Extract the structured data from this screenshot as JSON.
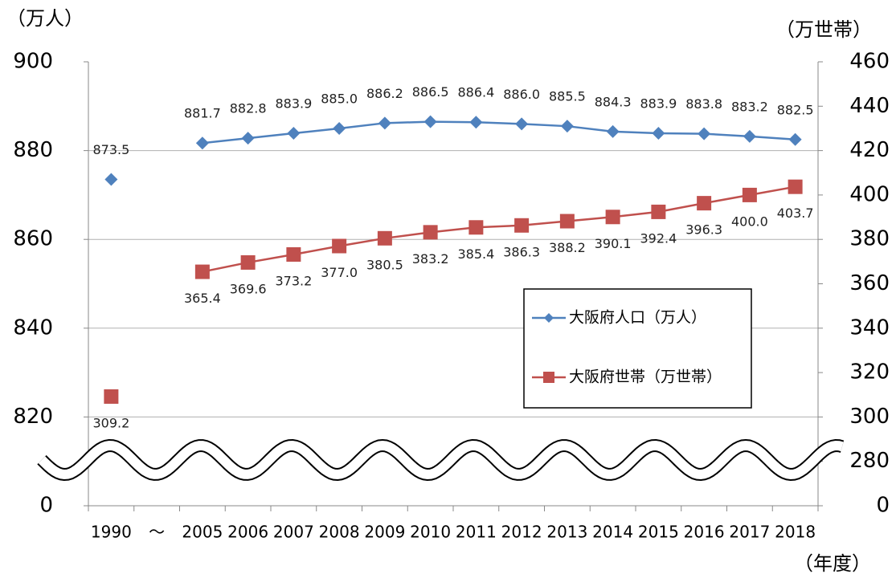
{
  "chart_data": {
    "type": "line",
    "y_axis_title": "（万人）",
    "y2_axis_title": "（万世帯）",
    "x_axis_title": "（年度）",
    "categories": [
      "1990",
      "～",
      "2005",
      "2006",
      "2007",
      "2008",
      "2009",
      "2010",
      "2011",
      "2012",
      "2013",
      "2014",
      "2015",
      "2016",
      "2017",
      "2018"
    ],
    "series": [
      {
        "name": "大阪府人口（万人）",
        "color": "#4f81bd",
        "marker": "diamond",
        "values": [
          873.5,
          null,
          881.7,
          882.8,
          883.9,
          885.0,
          886.2,
          886.5,
          886.4,
          886.0,
          885.5,
          884.3,
          883.9,
          883.8,
          883.2,
          882.5
        ],
        "value_labels": [
          "873.5",
          null,
          "881.7",
          "882.8",
          "883.9",
          "885.0",
          "886.2",
          "886.5",
          "886.4",
          "886.0",
          "885.5",
          "884.3",
          "883.9",
          "883.8",
          "883.2",
          "882.5"
        ]
      },
      {
        "name": "大阪府世帯（万世帯）",
        "color": "#c0504d",
        "marker": "square",
        "axis": "y2",
        "values": [
          309.2,
          null,
          365.4,
          369.6,
          373.2,
          377.0,
          380.5,
          383.2,
          385.4,
          386.3,
          388.2,
          390.1,
          392.4,
          396.3,
          400.0,
          403.7
        ],
        "value_labels": [
          "309.2",
          null,
          "365.4",
          "369.6",
          "373.2",
          "377.0",
          "380.5",
          "383.2",
          "385.4",
          "386.3",
          "388.2",
          "390.1",
          "392.4",
          "396.3",
          "400.0",
          "403.7"
        ]
      }
    ],
    "ylim": [
      800,
      900
    ],
    "yticks": [
      {
        "value": 800,
        "label": "0"
      },
      820,
      840,
      860,
      880,
      900
    ],
    "y2lim": [
      260,
      460
    ],
    "y2ticks": [
      {
        "value": 260,
        "label": "0"
      },
      280,
      300,
      320,
      340,
      360,
      380,
      400,
      420,
      440,
      460
    ],
    "axis_break": true,
    "grid": true,
    "legend": "right"
  }
}
